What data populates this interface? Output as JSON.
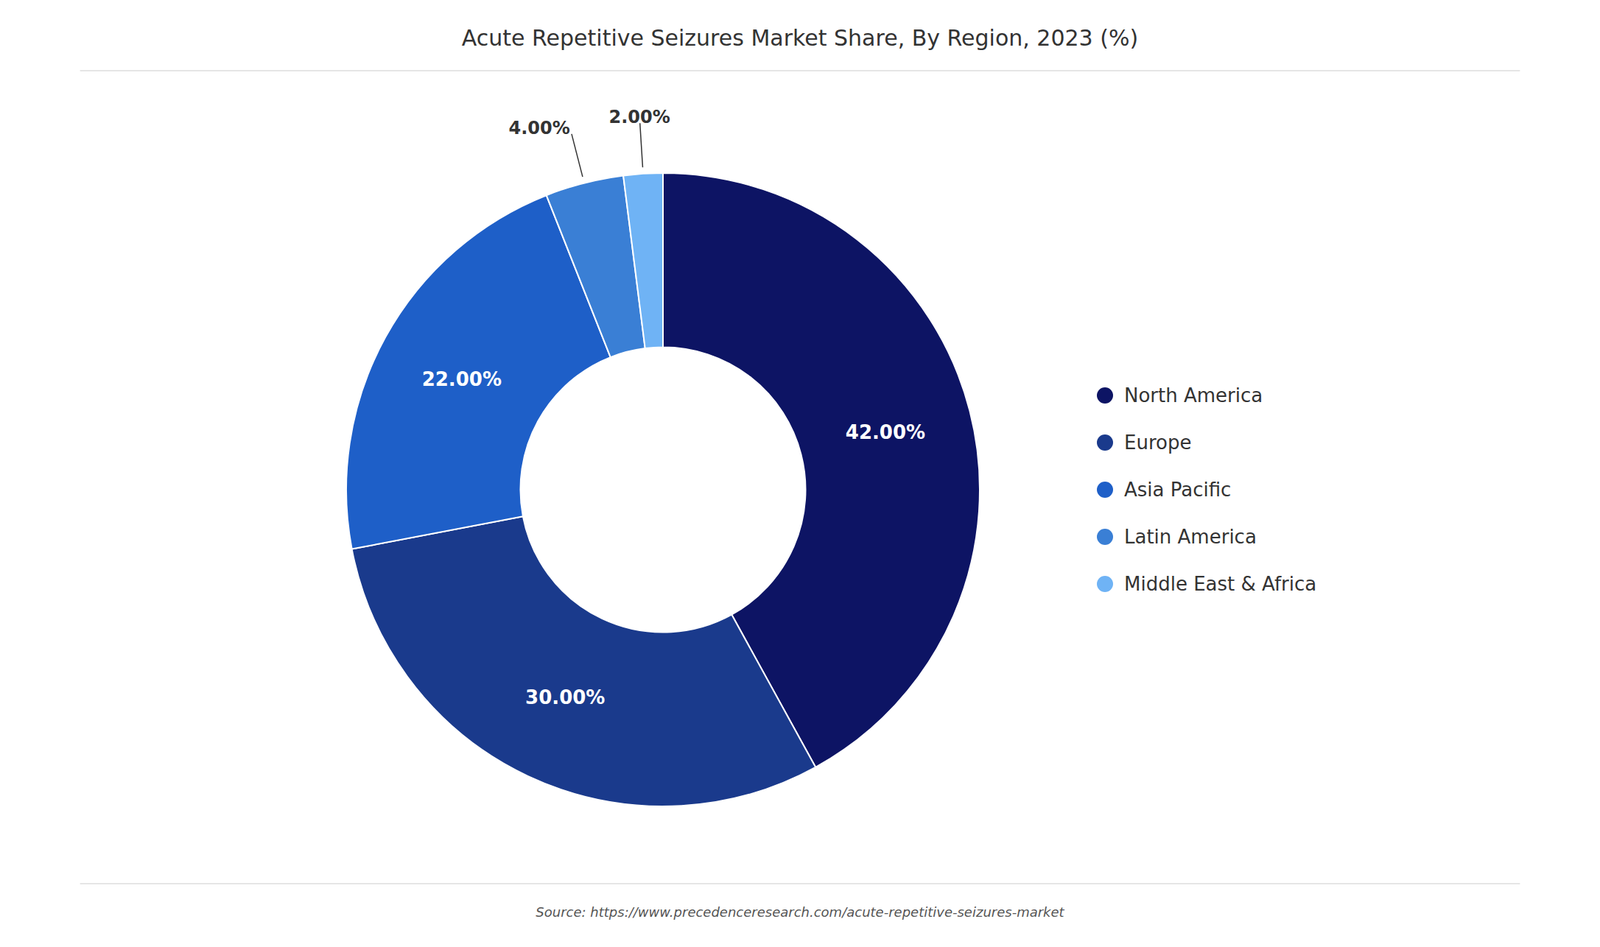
{
  "chart_data": {
    "type": "donut",
    "title": "Acute Repetitive Seizures Market Share, By Region, 2023 (%)",
    "categories": [
      "North America",
      "Europe",
      "Asia Pacific",
      "Latin America",
      "Middle East & Africa"
    ],
    "values": [
      42,
      30,
      22,
      4,
      2
    ],
    "value_labels": [
      "42.00%",
      "30.00%",
      "22.00%",
      "4.00%",
      "2.00%"
    ],
    "colors": [
      "#0d1464",
      "#1a3a8c",
      "#1e5fc8",
      "#3a7fd5",
      "#6fb3f5"
    ],
    "data_labels": true,
    "legend": "right",
    "annotations": [
      "Source: https://www.precedenceresearch.com/acute-repetitive-seizures-market"
    ]
  }
}
